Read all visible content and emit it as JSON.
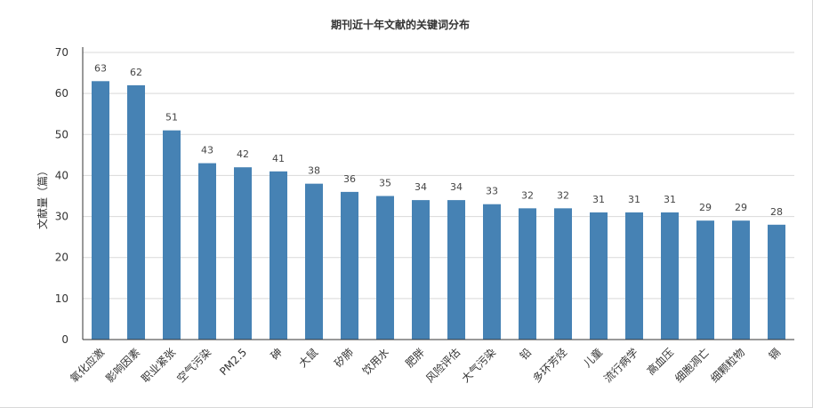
{
  "chart_data": {
    "type": "bar",
    "title": "期刊近十年文献的关键词分布",
    "xlabel": "",
    "ylabel": "文献量（篇）",
    "ylim": [
      0,
      70
    ],
    "yticks": [
      0,
      10,
      20,
      30,
      40,
      50,
      60,
      70
    ],
    "grid": true,
    "bar_color": "#4682b4",
    "categories": [
      "氧化应激",
      "影响因素",
      "职业紧张",
      "空气污染",
      "PM2.5",
      "砷",
      "大鼠",
      "矽肺",
      "饮用水",
      "肥胖",
      "风险评估",
      "大气污染",
      "铅",
      "多环芳烃",
      "儿童",
      "流行病学",
      "高血压",
      "细胞凋亡",
      "细颗粒物",
      "镉"
    ],
    "values": [
      63,
      62,
      51,
      43,
      42,
      41,
      38,
      36,
      35,
      34,
      34,
      33,
      32,
      32,
      31,
      31,
      31,
      29,
      29,
      28
    ]
  }
}
